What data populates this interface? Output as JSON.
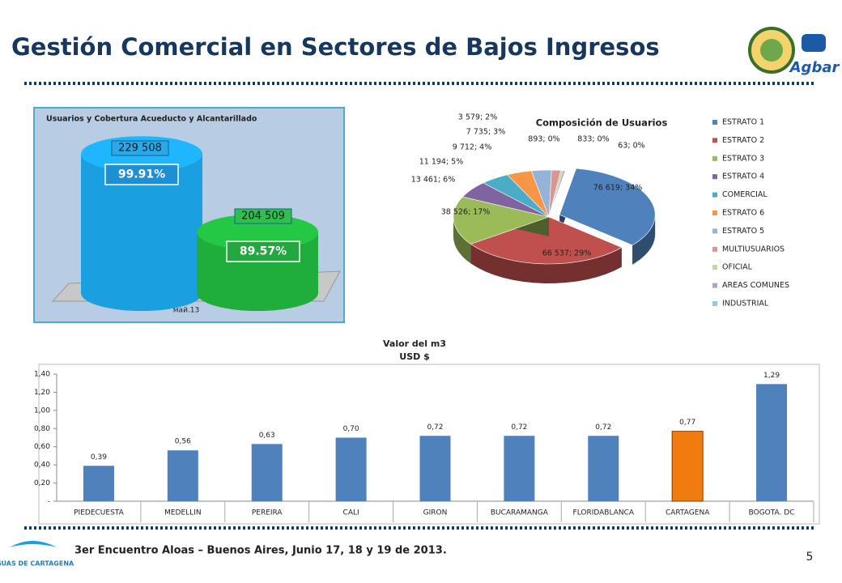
{
  "header": {
    "title": "Gestión Comercial en Sectores de Bajos Ingresos",
    "logo": "Agbar"
  },
  "footer": {
    "text": "3er Encuentro Aloas – Buenos Aires, Junio 17, 18 y 19 de 2013.",
    "page": "5",
    "logo": "AGUAS DE CARTAGENA"
  },
  "chart_data": [
    {
      "type": "cylinder",
      "title": "Usuarios y  Cobertura Acueducto y Alcantarillado",
      "categories": [
        "май.13"
      ],
      "ylim": [
        185000,
        235000
      ],
      "series": [
        {
          "color": "#1a9fe0",
          "values": [
            229508
          ],
          "value_labels": [
            "229 508"
          ],
          "coverage": [
            99.91
          ],
          "coverage_labels": [
            "99.91%"
          ]
        },
        {
          "color": "#1fae3c",
          "values": [
            204509
          ],
          "value_labels": [
            "204 509"
          ],
          "coverage": [
            89.57
          ],
          "coverage_labels": [
            "89.57%"
          ]
        }
      ]
    },
    {
      "type": "pie",
      "title": "Composición de Usuarios",
      "categories": [
        "ESTRATO 1",
        "ESTRATO 2",
        "ESTRATO 3",
        "ESTRATO 4",
        "COMERCIAL",
        "ESTRATO 6",
        "ESTRATO 5",
        "MULTIUSUARIOS",
        "OFICIAL",
        "AREAS COMUNES",
        "INDUSTRIAL"
      ],
      "values": [
        76619,
        66537,
        38526,
        13461,
        11194,
        9712,
        7735,
        3579,
        893,
        833,
        63
      ],
      "value_labels": [
        "76 619; 34%",
        "66 537; 29%",
        "38 526; 17%",
        "13 461; 6%",
        "11 194; 5%",
        "9 712; 4%",
        "7 735; 3%",
        "3 579; 2%",
        "893; 0%",
        "833; 0%",
        "63; 0%"
      ],
      "colors": [
        "#4f81bd",
        "#c0504d",
        "#9bbb59",
        "#8064a2",
        "#4bacc6",
        "#f79646",
        "#95b3d7",
        "#d99694",
        "#c3d69b",
        "#b3a2c7",
        "#93cddd"
      ],
      "legend": "right"
    },
    {
      "type": "bar",
      "title": "Valor del m3",
      "subtitle": "USD $",
      "categories": [
        "PIEDECUESTA",
        "MEDELLIN",
        "PEREIRA",
        "CALI",
        "GIRON",
        "BUCARAMANGA",
        "FLORIDABLANCA",
        "CARTAGENA",
        "BOGOTA. DC"
      ],
      "values": [
        0.39,
        0.56,
        0.63,
        0.7,
        0.72,
        0.72,
        0.72,
        0.77,
        1.29
      ],
      "value_labels": [
        "0,39",
        "0,56",
        "0,63",
        "0,70",
        "0,72",
        "0,72",
        "0,72",
        "0,77",
        "1,29"
      ],
      "colors": [
        "#4f81bd",
        "#4f81bd",
        "#4f81bd",
        "#4f81bd",
        "#4f81bd",
        "#4f81bd",
        "#4f81bd",
        "#f07c10",
        "#4f81bd"
      ],
      "ylim": [
        0,
        1.4
      ],
      "yticks": [
        {
          "value": 0,
          "label": "-"
        },
        {
          "value": 0.2,
          "label": "0,20"
        },
        {
          "value": 0.4,
          "label": "0,40"
        },
        {
          "value": 0.6,
          "label": "0,60"
        },
        {
          "value": 0.8,
          "label": "0,80"
        },
        {
          "value": 1.0,
          "label": "1,00"
        },
        {
          "value": 1.2,
          "label": "1,20"
        },
        {
          "value": 1.4,
          "label": "1,40"
        }
      ],
      "grid": false
    }
  ]
}
